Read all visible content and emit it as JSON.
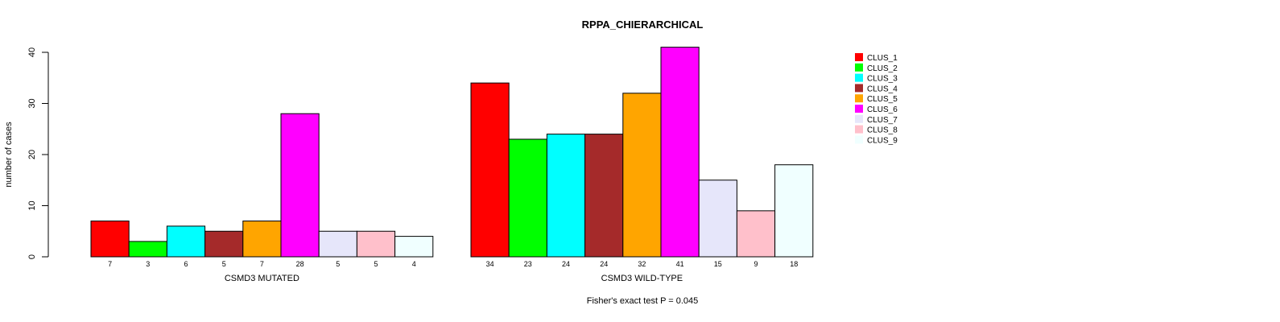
{
  "chart_data": {
    "type": "bar",
    "title": "RPPA_CHIERARCHICAL",
    "ylabel": "number of cases",
    "ylim": [
      0,
      40
    ],
    "yticks": [
      0,
      10,
      20,
      30,
      40
    ],
    "footnote": "Fisher's exact test P = 0.045",
    "clusters": [
      "CLUS_1",
      "CLUS_2",
      "CLUS_3",
      "CLUS_4",
      "CLUS_5",
      "CLUS_6",
      "CLUS_7",
      "CLUS_8",
      "CLUS_9"
    ],
    "colors": [
      "#ff0000",
      "#00ff00",
      "#00ffff",
      "#a52a2a",
      "#ffa500",
      "#ff00ff",
      "#e6e6fa",
      "#ffc0cb",
      "#f0ffff"
    ],
    "groups": [
      {
        "name": "CSMD3 MUTATED",
        "values": [
          7,
          3,
          6,
          5,
          7,
          28,
          5,
          5,
          4
        ]
      },
      {
        "name": "CSMD3 WILD-TYPE",
        "values": [
          34,
          23,
          24,
          24,
          32,
          41,
          15,
          9,
          18
        ]
      }
    ],
    "legend": [
      "CLUS_1",
      "CLUS_2",
      "CLUS_3",
      "CLUS_4",
      "CLUS_5",
      "CLUS_6",
      "CLUS_7",
      "CLUS_8",
      "CLUS_9"
    ],
    "legend_position": "right"
  }
}
